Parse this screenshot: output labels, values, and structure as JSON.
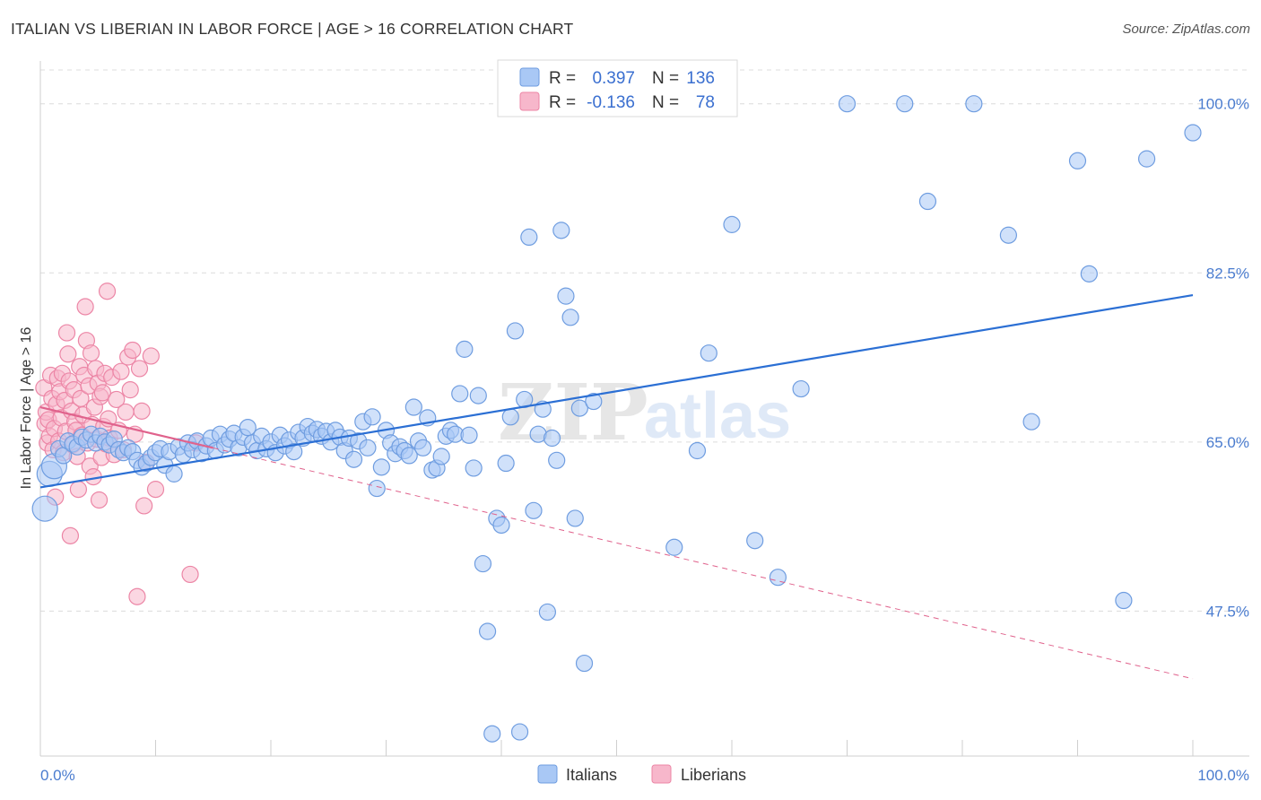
{
  "header": {
    "title": "ITALIAN VS LIBERIAN IN LABOR FORCE | AGE > 16 CORRELATION CHART",
    "source": "Source: ZipAtlas.com"
  },
  "legend_top": {
    "rows": [
      {
        "r_label": "R =",
        "r_value": "0.397",
        "n_label": "N =",
        "n_value": "136",
        "color": "#a9c8f5"
      },
      {
        "r_label": "R =",
        "r_value": "-0.136",
        "n_label": "N =",
        "n_value": "78",
        "color": "#f7b7cb"
      }
    ]
  },
  "legend_bottom": {
    "items": [
      {
        "label": "Italians",
        "color": "#a9c8f5"
      },
      {
        "label": "Liberians",
        "color": "#f7b7cb"
      }
    ]
  },
  "watermark": {
    "zip": "ZIP",
    "atlas": "atlas"
  },
  "colors": {
    "italians_fill": "#a9c8f5",
    "italians_stroke": "#6f9de0",
    "italians_line": "#2b6fd4",
    "liberians_fill": "#f7b7cb",
    "liberians_stroke": "#ec86a6",
    "liberians_line": "#e0628c",
    "grid": "#dcdcdc",
    "tick_label": "#4a7ccf"
  },
  "chart_data": {
    "type": "scatter",
    "title": "ITALIAN VS LIBERIAN IN LABOR FORCE | AGE > 16 CORRELATION CHART",
    "xlabel": "",
    "ylabel": "In Labor Force | Age > 16",
    "xlim": [
      0,
      100
    ],
    "ylim": [
      32.5,
      103.5
    ],
    "x_tick_labels": [
      "0.0%",
      "100.0%"
    ],
    "y_ticks": [
      47.5,
      65.0,
      82.5,
      100.0
    ],
    "y_tick_labels": [
      "47.5%",
      "65.0%",
      "82.5%",
      "100.0%"
    ],
    "grid": true,
    "legend_position": "top-center",
    "series": [
      {
        "name": "Italians",
        "R": 0.397,
        "N": 136,
        "trend": {
          "x": [
            0,
            100
          ],
          "y": [
            60.3,
            80.2
          ]
        },
        "points": [
          [
            0.4,
            58.1
          ],
          [
            0.8,
            61.7
          ],
          [
            1.2,
            62.5
          ],
          [
            1.6,
            64.3
          ],
          [
            2.0,
            63.6
          ],
          [
            2.4,
            65.1
          ],
          [
            2.8,
            64.8
          ],
          [
            3.2,
            64.5
          ],
          [
            3.6,
            65.5
          ],
          [
            4.0,
            65.2
          ],
          [
            4.4,
            65.8
          ],
          [
            4.8,
            64.9
          ],
          [
            5.2,
            65.6
          ],
          [
            5.6,
            65.0
          ],
          [
            6.0,
            64.7
          ],
          [
            6.4,
            65.3
          ],
          [
            6.8,
            64.2
          ],
          [
            7.2,
            63.9
          ],
          [
            7.6,
            64.4
          ],
          [
            8.0,
            64.0
          ],
          [
            8.4,
            63.1
          ],
          [
            8.8,
            62.4
          ],
          [
            9.2,
            62.8
          ],
          [
            9.6,
            63.4
          ],
          [
            10.0,
            63.9
          ],
          [
            10.4,
            64.3
          ],
          [
            10.8,
            62.6
          ],
          [
            11.2,
            64.0
          ],
          [
            11.6,
            61.7
          ],
          [
            12.0,
            64.5
          ],
          [
            12.4,
            63.7
          ],
          [
            12.8,
            64.9
          ],
          [
            13.2,
            64.2
          ],
          [
            13.6,
            65.1
          ],
          [
            14.0,
            63.8
          ],
          [
            14.4,
            64.6
          ],
          [
            14.8,
            65.4
          ],
          [
            15.2,
            64.1
          ],
          [
            15.6,
            65.8
          ],
          [
            16.0,
            64.7
          ],
          [
            16.4,
            65.3
          ],
          [
            16.8,
            65.9
          ],
          [
            17.2,
            64.4
          ],
          [
            17.6,
            65.5
          ],
          [
            18.0,
            66.5
          ],
          [
            18.4,
            64.9
          ],
          [
            18.8,
            64.1
          ],
          [
            19.2,
            65.6
          ],
          [
            19.6,
            64.3
          ],
          [
            20.0,
            65.0
          ],
          [
            20.4,
            63.9
          ],
          [
            20.8,
            65.7
          ],
          [
            21.2,
            64.6
          ],
          [
            21.6,
            65.2
          ],
          [
            22.0,
            64.0
          ],
          [
            22.4,
            66.0
          ],
          [
            22.8,
            65.4
          ],
          [
            23.2,
            66.6
          ],
          [
            23.6,
            65.9
          ],
          [
            24.0,
            66.3
          ],
          [
            24.4,
            65.6
          ],
          [
            24.8,
            66.1
          ],
          [
            25.2,
            65.0
          ],
          [
            25.6,
            66.2
          ],
          [
            26.0,
            65.5
          ],
          [
            26.4,
            64.1
          ],
          [
            26.8,
            65.4
          ],
          [
            27.2,
            63.2
          ],
          [
            27.6,
            65.1
          ],
          [
            28.0,
            67.1
          ],
          [
            28.4,
            64.4
          ],
          [
            28.8,
            67.6
          ],
          [
            29.2,
            60.2
          ],
          [
            29.6,
            62.4
          ],
          [
            30.0,
            66.2
          ],
          [
            30.4,
            64.9
          ],
          [
            30.8,
            63.8
          ],
          [
            31.2,
            64.5
          ],
          [
            31.6,
            64.1
          ],
          [
            32.0,
            63.6
          ],
          [
            32.4,
            68.6
          ],
          [
            32.8,
            65.1
          ],
          [
            33.2,
            64.4
          ],
          [
            33.6,
            67.5
          ],
          [
            34.0,
            62.1
          ],
          [
            34.4,
            62.3
          ],
          [
            34.8,
            63.5
          ],
          [
            35.2,
            65.6
          ],
          [
            35.6,
            66.2
          ],
          [
            36.0,
            65.8
          ],
          [
            36.4,
            70.0
          ],
          [
            36.8,
            74.6
          ],
          [
            37.2,
            65.7
          ],
          [
            37.6,
            62.3
          ],
          [
            38.0,
            69.8
          ],
          [
            38.4,
            52.4
          ],
          [
            38.8,
            45.4
          ],
          [
            39.2,
            34.8
          ],
          [
            39.6,
            57.1
          ],
          [
            40.0,
            56.4
          ],
          [
            40.4,
            62.8
          ],
          [
            40.8,
            67.6
          ],
          [
            41.2,
            76.5
          ],
          [
            41.6,
            35.0
          ],
          [
            42.0,
            69.4
          ],
          [
            42.4,
            86.2
          ],
          [
            42.8,
            57.9
          ],
          [
            43.2,
            65.8
          ],
          [
            43.6,
            68.4
          ],
          [
            44.0,
            47.4
          ],
          [
            44.4,
            65.4
          ],
          [
            44.8,
            63.1
          ],
          [
            45.2,
            86.9
          ],
          [
            45.6,
            80.1
          ],
          [
            46.0,
            77.9
          ],
          [
            46.4,
            57.1
          ],
          [
            46.8,
            68.5
          ],
          [
            47.2,
            42.1
          ],
          [
            48.0,
            69.2
          ],
          [
            50.0,
            100.0
          ],
          [
            53.0,
            100.0
          ],
          [
            55.0,
            54.1
          ],
          [
            57.0,
            64.1
          ],
          [
            58.0,
            74.2
          ],
          [
            60.0,
            87.5
          ],
          [
            62.0,
            54.8
          ],
          [
            64.0,
            51.0
          ],
          [
            66.0,
            70.5
          ],
          [
            70.0,
            100.0
          ],
          [
            75.0,
            100.0
          ],
          [
            77.0,
            89.9
          ],
          [
            81.0,
            100.0
          ],
          [
            84.0,
            86.4
          ],
          [
            86.0,
            67.1
          ],
          [
            90.0,
            94.1
          ],
          [
            91.0,
            82.4
          ],
          [
            94.0,
            48.6
          ],
          [
            96.0,
            94.3
          ],
          [
            100.0,
            97.0
          ]
        ]
      },
      {
        "name": "Liberians",
        "R": -0.136,
        "N": 78,
        "trend": {
          "x": [
            0,
            100
          ],
          "y": [
            68.6,
            40.5
          ],
          "solid_until_x": 15
        },
        "points": [
          [
            0.3,
            70.6
          ],
          [
            0.4,
            66.9
          ],
          [
            0.5,
            68.1
          ],
          [
            0.6,
            64.9
          ],
          [
            0.7,
            67.3
          ],
          [
            0.8,
            65.6
          ],
          [
            0.9,
            71.9
          ],
          [
            1.0,
            69.5
          ],
          [
            1.1,
            64.2
          ],
          [
            1.2,
            66.4
          ],
          [
            1.3,
            59.3
          ],
          [
            1.4,
            68.9
          ],
          [
            1.5,
            71.6
          ],
          [
            1.6,
            65.1
          ],
          [
            1.7,
            70.2
          ],
          [
            1.8,
            67.5
          ],
          [
            1.9,
            72.1
          ],
          [
            2.0,
            63.9
          ],
          [
            2.1,
            69.3
          ],
          [
            2.2,
            66.1
          ],
          [
            2.3,
            76.3
          ],
          [
            2.4,
            74.1
          ],
          [
            2.5,
            71.3
          ],
          [
            2.6,
            55.3
          ],
          [
            2.7,
            68.2
          ],
          [
            2.8,
            64.7
          ],
          [
            2.9,
            70.4
          ],
          [
            3.0,
            67.1
          ],
          [
            3.1,
            66.2
          ],
          [
            3.2,
            63.5
          ],
          [
            3.3,
            60.1
          ],
          [
            3.4,
            72.8
          ],
          [
            3.5,
            69.5
          ],
          [
            3.6,
            65.7
          ],
          [
            3.7,
            67.8
          ],
          [
            3.8,
            71.9
          ],
          [
            3.9,
            79.0
          ],
          [
            4.0,
            75.5
          ],
          [
            4.1,
            64.9
          ],
          [
            4.2,
            70.8
          ],
          [
            4.3,
            62.5
          ],
          [
            4.4,
            74.2
          ],
          [
            4.5,
            66.8
          ],
          [
            4.6,
            61.4
          ],
          [
            4.7,
            68.6
          ],
          [
            4.8,
            72.6
          ],
          [
            4.9,
            65.3
          ],
          [
            5.0,
            71.1
          ],
          [
            5.1,
            59.0
          ],
          [
            5.2,
            69.7
          ],
          [
            5.3,
            63.4
          ],
          [
            5.4,
            70.1
          ],
          [
            5.5,
            66.6
          ],
          [
            5.6,
            72.1
          ],
          [
            5.7,
            64.8
          ],
          [
            5.8,
            80.6
          ],
          [
            5.9,
            67.4
          ],
          [
            6.0,
            65.4
          ],
          [
            6.2,
            71.7
          ],
          [
            6.4,
            63.7
          ],
          [
            6.6,
            69.4
          ],
          [
            6.8,
            66.2
          ],
          [
            7.0,
            72.3
          ],
          [
            7.2,
            64.2
          ],
          [
            7.4,
            68.1
          ],
          [
            7.6,
            73.8
          ],
          [
            7.8,
            70.4
          ],
          [
            8.0,
            74.5
          ],
          [
            8.2,
            65.8
          ],
          [
            8.4,
            49.0
          ],
          [
            8.6,
            72.6
          ],
          [
            8.8,
            68.2
          ],
          [
            9.0,
            58.4
          ],
          [
            9.2,
            62.9
          ],
          [
            9.6,
            73.9
          ],
          [
            10.0,
            60.1
          ],
          [
            13.0,
            51.3
          ],
          [
            13.5,
            64.9
          ]
        ]
      }
    ]
  }
}
